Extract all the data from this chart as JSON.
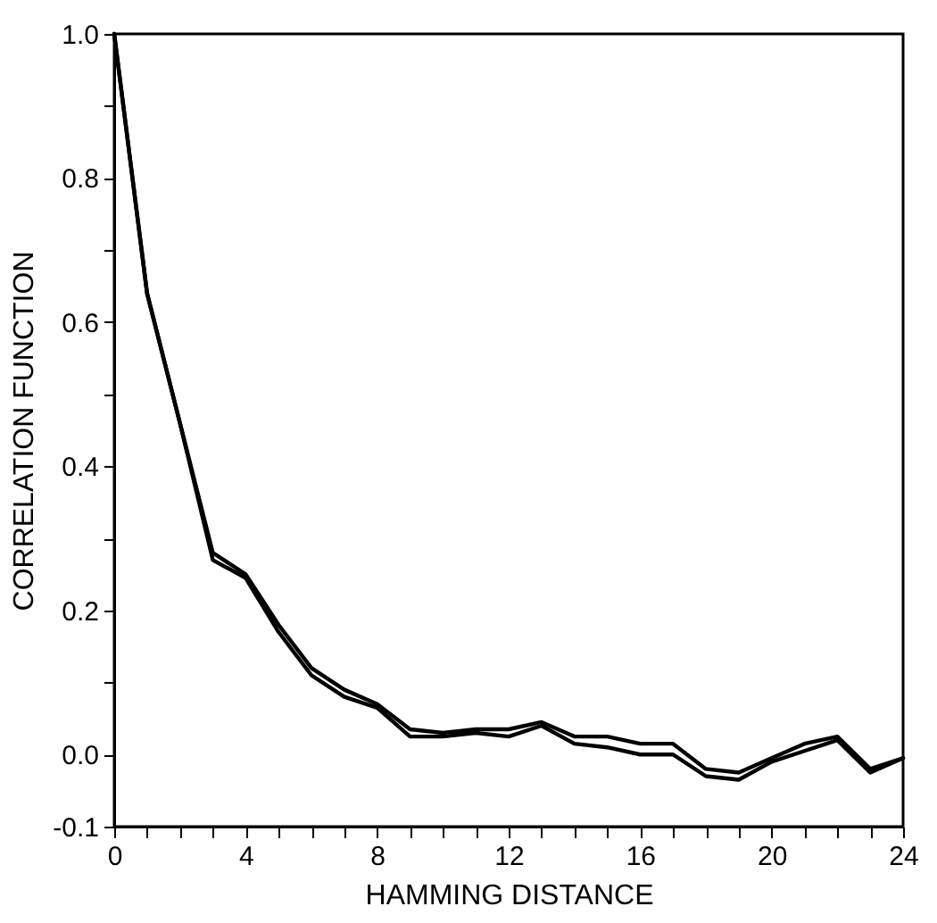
{
  "chart_data": {
    "type": "line",
    "xlabel": "HAMMING DISTANCE",
    "ylabel": "CORRELATION FUNCTION",
    "x": [
      0,
      1,
      2,
      3,
      4,
      5,
      6,
      7,
      8,
      9,
      10,
      11,
      12,
      13,
      14,
      15,
      16,
      17,
      18,
      19,
      20,
      21,
      22,
      23,
      24
    ],
    "series": [
      {
        "color": "#000000",
        "values": [
          1.0,
          0.64,
          0.46,
          0.28,
          0.25,
          0.18,
          0.12,
          0.09,
          0.07,
          0.035,
          0.03,
          0.035,
          0.035,
          0.045,
          0.025,
          0.025,
          0.015,
          0.015,
          -0.02,
          -0.025,
          -0.005,
          0.015,
          0.025,
          -0.02,
          -0.005
        ]
      },
      {
        "color": "#000000",
        "values": [
          1.0,
          0.64,
          0.46,
          0.27,
          0.245,
          0.17,
          0.11,
          0.08,
          0.065,
          0.025,
          0.025,
          0.03,
          0.025,
          0.04,
          0.015,
          0.01,
          0.0,
          0.0,
          -0.03,
          -0.035,
          -0.01,
          0.005,
          0.02,
          -0.025,
          -0.005
        ]
      }
    ],
    "xlim": [
      0,
      24
    ],
    "xticks": [
      0,
      {
        "value": 1,
        "label": null
      },
      {
        "value": 2,
        "label": null
      },
      {
        "value": 3,
        "label": null
      },
      4,
      {
        "value": 5,
        "label": null
      },
      {
        "value": 6,
        "label": null
      },
      {
        "value": 7,
        "label": null
      },
      8,
      {
        "value": 9,
        "label": null
      },
      {
        "value": 10,
        "label": null
      },
      {
        "value": 11,
        "label": null
      },
      12,
      {
        "value": 13,
        "label": null
      },
      {
        "value": 14,
        "label": null
      },
      {
        "value": 15,
        "label": null
      },
      16,
      {
        "value": 17,
        "label": null
      },
      {
        "value": 18,
        "label": null
      },
      {
        "value": 19,
        "label": null
      },
      20,
      {
        "value": 21,
        "label": null
      },
      {
        "value": 22,
        "label": null
      },
      {
        "value": 23,
        "label": null
      },
      24
    ],
    "ylim": [
      -0.1,
      1.0
    ],
    "yticks": [
      {
        "value": -0.1,
        "label": "-0.1"
      },
      {
        "value": 0,
        "label": "0.0"
      },
      {
        "value": 0.1,
        "label": null
      },
      {
        "value": 0.2,
        "label": "0.2"
      },
      {
        "value": 0.3,
        "label": null
      },
      {
        "value": 0.4,
        "label": "0.4"
      },
      {
        "value": 0.5,
        "label": null
      },
      {
        "value": 0.6,
        "label": "0.6"
      },
      {
        "value": 0.7,
        "label": null
      },
      {
        "value": 0.8,
        "label": "0.8"
      },
      {
        "value": 0.9,
        "label": null
      },
      {
        "value": 1.0,
        "label": "1.0"
      }
    ],
    "grid": false,
    "line_style": "solid",
    "marker": "none"
  }
}
